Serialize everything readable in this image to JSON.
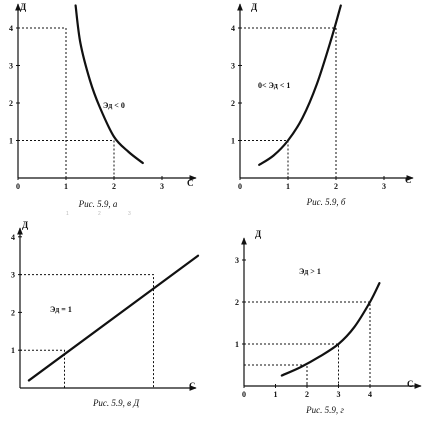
{
  "chart_data": [
    {
      "id": "a",
      "type": "line",
      "ylabel": "Д",
      "xlabel": "С",
      "xticks": [
        "0",
        "1",
        "2",
        "3"
      ],
      "yticks": [
        "1",
        "2",
        "3",
        "4"
      ],
      "xlim": [
        0,
        3.4
      ],
      "ylim": [
        0,
        4.6
      ],
      "annotation": "Эд < 0",
      "caption": "Рис. 5.9, а",
      "series": [
        {
          "x": [
            1.2,
            1.3,
            1.5,
            1.7,
            2.0,
            2.3,
            2.6
          ],
          "y": [
            4.6,
            3.6,
            2.6,
            1.9,
            1.1,
            0.7,
            0.4
          ]
        }
      ],
      "guides": [
        {
          "x": 1,
          "y": 4
        },
        {
          "x": 2,
          "y": 1
        }
      ]
    },
    {
      "id": "b",
      "type": "line",
      "ylabel": "Д",
      "xlabel": "С",
      "xticks": [
        "0",
        "1",
        "2",
        "3"
      ],
      "yticks": [
        "1",
        "2",
        "3",
        "4"
      ],
      "xlim": [
        0,
        3.6
      ],
      "ylim": [
        0,
        4.6
      ],
      "annotation": "0< Эд < 1",
      "caption": "Рис. 5.9, б",
      "series": [
        {
          "x": [
            0.4,
            0.7,
            1.0,
            1.3,
            1.6,
            1.9,
            2.1
          ],
          "y": [
            0.35,
            0.6,
            1.0,
            1.6,
            2.5,
            3.7,
            4.6
          ]
        }
      ],
      "guides": [
        {
          "x": 1,
          "y": 1
        },
        {
          "x": 2,
          "y": 4
        }
      ]
    },
    {
      "id": "v",
      "type": "line",
      "ylabel": "Д",
      "xlabel": "С",
      "xticks": [],
      "yticks": [
        "1",
        "2",
        "3",
        "4"
      ],
      "xlim": [
        0,
        4.2
      ],
      "ylim": [
        0,
        4.3
      ],
      "annotation": "Эд = 1",
      "caption": "Рис. 5.9, в Д",
      "series": [
        {
          "x": [
            0.2,
            4.0
          ],
          "y": [
            0.2,
            3.5
          ]
        }
      ],
      "guides": [
        {
          "x": 1,
          "y": 1
        },
        {
          "x": 3,
          "y": 3
        }
      ]
    },
    {
      "id": "g",
      "type": "line",
      "ylabel": "Д",
      "xlabel": "С",
      "xticks": [
        "0",
        "1",
        "2",
        "3",
        "4"
      ],
      "yticks": [
        "1",
        "2",
        "3"
      ],
      "xlim": [
        0,
        4.7
      ],
      "ylim": [
        0,
        3.4
      ],
      "annotation": "Эд > 1",
      "caption": "Рис. 5.9, г",
      "series": [
        {
          "x": [
            1.2,
            1.8,
            2.4,
            3.0,
            3.5,
            4.0,
            4.3
          ],
          "y": [
            0.25,
            0.45,
            0.7,
            1.0,
            1.4,
            2.0,
            2.45
          ]
        }
      ],
      "guides": [
        {
          "x": 2,
          "y": 0.5
        },
        {
          "x": 3,
          "y": 1
        },
        {
          "x": 4,
          "y": 2
        }
      ]
    }
  ],
  "stray_marks": [
    "1",
    "2",
    "3"
  ]
}
